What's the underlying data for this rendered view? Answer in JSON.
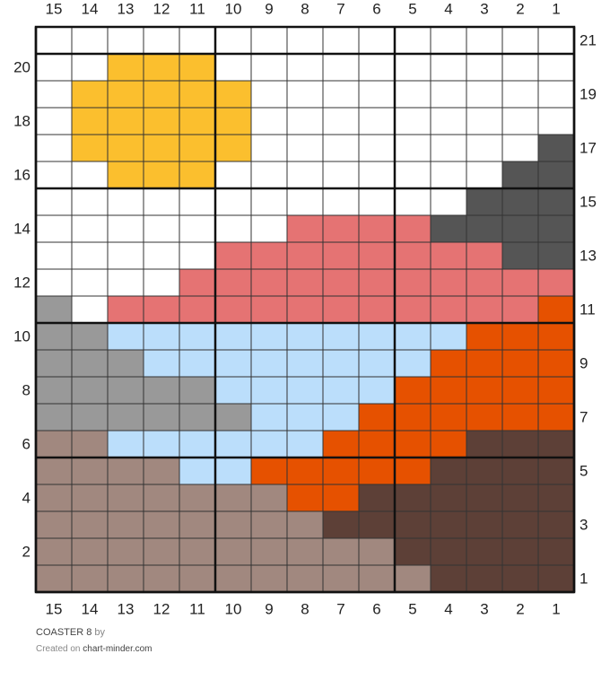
{
  "title": "COASTER 8",
  "by": "by",
  "created_on": "Created on",
  "site": "chart-minder.com",
  "columns": [
    15,
    14,
    13,
    12,
    11,
    10,
    9,
    8,
    7,
    6,
    5,
    4,
    3,
    2,
    1
  ],
  "palette": {
    "W": "#ffffff",
    "Y": "#fbbf2e",
    "K": "#555555",
    "P": "#e57373",
    "G": "#999999",
    "B": "#bbdefb",
    "O": "#e65100",
    "T": "#a1887f",
    "D": "#5d4037"
  },
  "rows": [
    {
      "number": 21,
      "cells": "WWWWWWWWWWWWWWW"
    },
    {
      "number": 20,
      "cells": "WWYYYWWWWWWWWWW"
    },
    {
      "number": 19,
      "cells": "WYYYYYWWWWWWWWW"
    },
    {
      "number": 18,
      "cells": "WYYYYYWWWWWWWWW"
    },
    {
      "number": 17,
      "cells": "WYYYYYWWWWWWWWK"
    },
    {
      "number": 16,
      "cells": "WWYYYWWWWWWWWKK"
    },
    {
      "number": 15,
      "cells": "WWWWWWWWWWWWKKK"
    },
    {
      "number": 14,
      "cells": "WWWWWWWPPPPKKKK"
    },
    {
      "number": 13,
      "cells": "WWWWWPPPPPPPPKK"
    },
    {
      "number": 12,
      "cells": "WWWWPPPPPPPPPPP"
    },
    {
      "number": 11,
      "cells": "GWPPPPPPPPPPPPO"
    },
    {
      "number": 10,
      "cells": "GGBBBBBBBBBBOOO"
    },
    {
      "number": 9,
      "cells": "GGGBBBBBBBBOOOO"
    },
    {
      "number": 8,
      "cells": "GGGGGBBBBBOOOOO"
    },
    {
      "number": 7,
      "cells": "GGGGGGBBBOOOOOO"
    },
    {
      "number": 6,
      "cells": "TTBBBBBBOOOODDD"
    },
    {
      "number": 5,
      "cells": "TTTTBBOOOOODDDD"
    },
    {
      "number": 4,
      "cells": "TTTTTTTOODDDDDD"
    },
    {
      "number": 3,
      "cells": "TTTTTTTTDDDDDDD"
    },
    {
      "number": 2,
      "cells": "TTTTTTTTTTDDDDD"
    },
    {
      "number": 1,
      "cells": "TTTTTTTTTTTDDDD"
    }
  ]
}
